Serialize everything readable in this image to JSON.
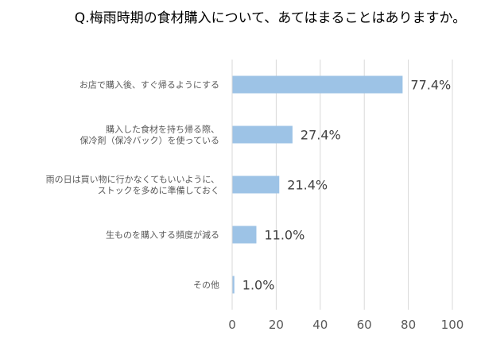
{
  "chart_data": {
    "type": "bar",
    "orientation": "horizontal",
    "title": "Q.梅雨時期の食材購入について、あてはまることはありますか。",
    "categories": [
      [
        "お店で購入後、すぐ帰るようにする"
      ],
      [
        "購入した食材を持ち帰る際、",
        "保冷剤（保冷バック）を使っている"
      ],
      [
        "雨の日は買い物に行かなくてもいいように、",
        "ストックを多めに準備しておく"
      ],
      [
        "生ものを購入する頻度が減る"
      ],
      [
        "その他"
      ]
    ],
    "values": [
      77.4,
      27.4,
      21.4,
      11.0,
      1.0
    ],
    "data_labels": [
      "77.4%",
      "27.4%",
      "21.4%",
      "11.0%",
      "1.0%"
    ],
    "xlim": [
      0,
      100
    ],
    "xticks": [
      "0",
      "20",
      "40",
      "60",
      "80",
      "100"
    ],
    "grid": true,
    "bar_color": "#9DC3E6",
    "grid_color": "#D9D9D9"
  }
}
